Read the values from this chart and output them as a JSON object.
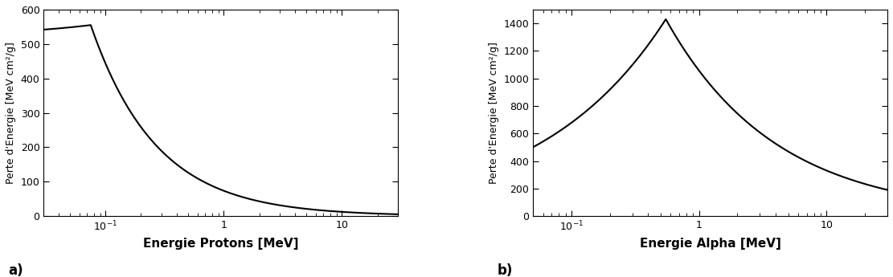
{
  "proton": {
    "xlabel": "Energie Protons [MeV]",
    "ylabel": "Perte d'Energie [MeV cm²/g]",
    "xlim": [
      0.03,
      30
    ],
    "ylim": [
      0,
      600
    ],
    "yticks": [
      0,
      100,
      200,
      300,
      400,
      500,
      600
    ],
    "label": "a)"
  },
  "alpha": {
    "xlabel": "Energie Alpha [MeV]",
    "ylabel": "Perte d'Energie [MeV cm²/g]",
    "xlim": [
      0.05,
      30
    ],
    "ylim": [
      0,
      1500
    ],
    "yticks": [
      0,
      200,
      400,
      600,
      800,
      1000,
      1200,
      1400
    ],
    "label": "b)"
  },
  "line_color": "#000000",
  "line_width": 1.5,
  "bg_color": "#ffffff",
  "xlabel_fontsize": 11,
  "ylabel_fontsize": 9,
  "tick_fontsize": 9,
  "label_fontsize": 12
}
